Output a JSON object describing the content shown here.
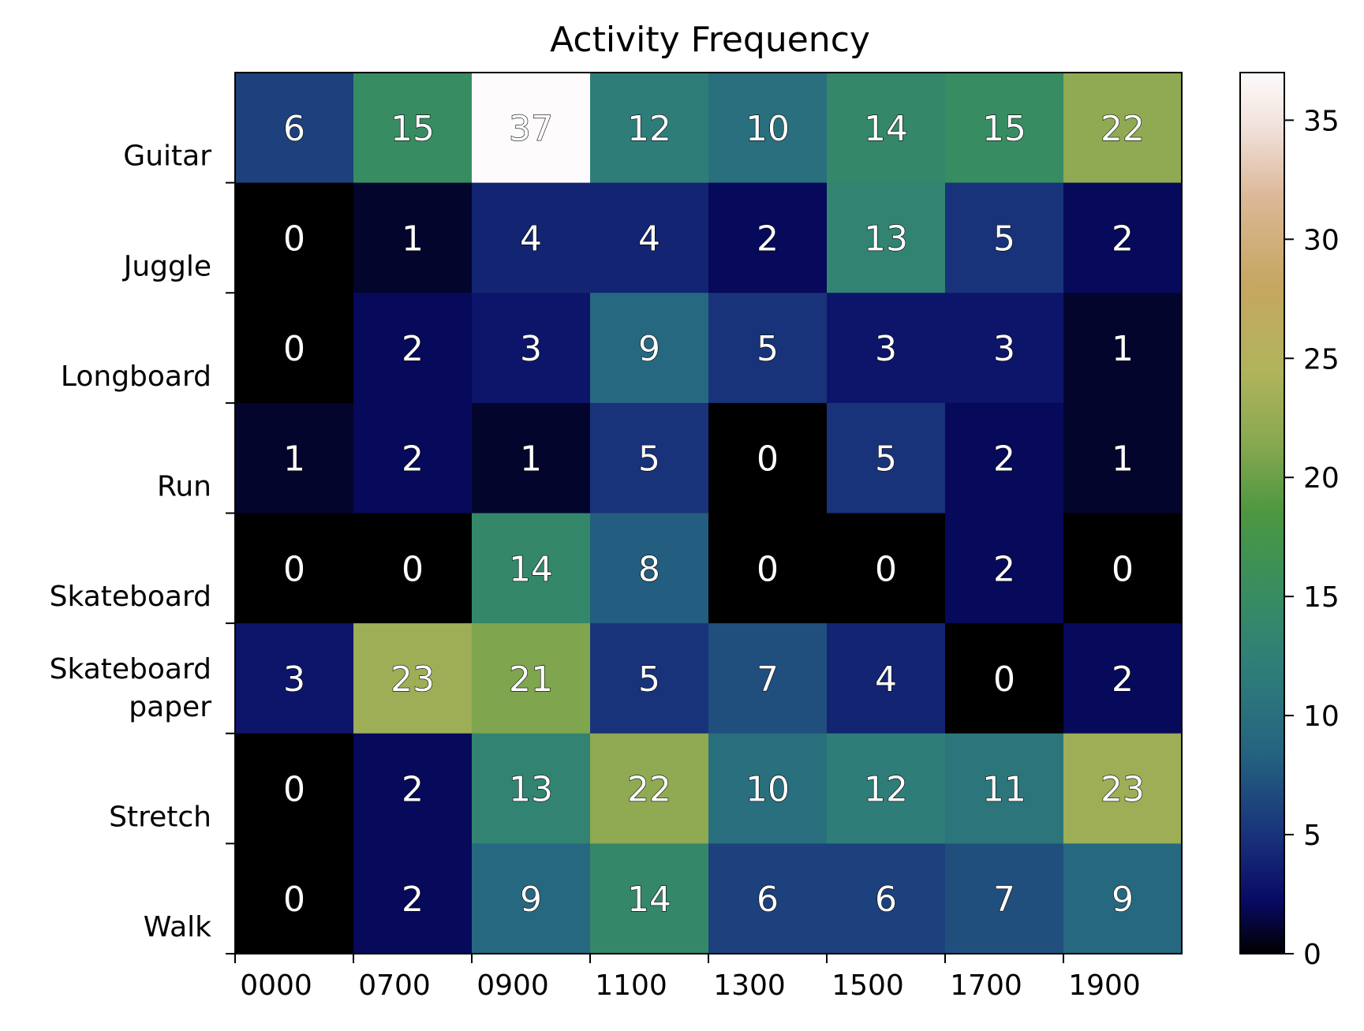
{
  "chart_data": {
    "type": "heatmap",
    "title": "Activity Frequency",
    "xlabel": "",
    "ylabel": "",
    "x_categories": [
      "0000",
      "0700",
      "0900",
      "1100",
      "1300",
      "1500",
      "1700",
      "1900"
    ],
    "y_categories": [
      "Guitar",
      "Juggle",
      "Longboard",
      "Run",
      "Skateboard",
      "Skateboard\npaper",
      "Stretch",
      "Walk"
    ],
    "values": [
      [
        6,
        15,
        37,
        12,
        10,
        14,
        15,
        22
      ],
      [
        0,
        1,
        4,
        4,
        2,
        13,
        5,
        2
      ],
      [
        0,
        2,
        3,
        9,
        5,
        3,
        3,
        1
      ],
      [
        1,
        2,
        1,
        5,
        0,
        5,
        2,
        1
      ],
      [
        0,
        0,
        14,
        8,
        0,
        0,
        2,
        0
      ],
      [
        3,
        23,
        21,
        5,
        7,
        4,
        0,
        2
      ],
      [
        0,
        2,
        13,
        22,
        10,
        12,
        11,
        23
      ],
      [
        0,
        2,
        9,
        14,
        6,
        6,
        7,
        9
      ]
    ],
    "colormap": "gist_earth",
    "colorbar": {
      "range": [
        0,
        37
      ],
      "ticks": [
        0,
        5,
        10,
        15,
        20,
        25,
        30,
        35
      ]
    },
    "grid": false
  }
}
